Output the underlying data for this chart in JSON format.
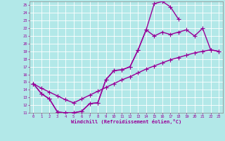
{
  "xlabel": "Windchill (Refroidissement éolien,°C)",
  "xlim": [
    -0.5,
    23.5
  ],
  "ylim": [
    11,
    25.5
  ],
  "xticks": [
    0,
    1,
    2,
    3,
    4,
    5,
    6,
    7,
    8,
    9,
    10,
    11,
    12,
    13,
    14,
    15,
    16,
    17,
    18,
    19,
    20,
    21,
    22,
    23
  ],
  "yticks": [
    11,
    12,
    13,
    14,
    15,
    16,
    17,
    18,
    19,
    20,
    21,
    22,
    23,
    24,
    25
  ],
  "bg_color": "#b2e8e8",
  "grid_color": "#ffffff",
  "line_color": "#990099",
  "curve1_x": [
    0,
    1,
    2,
    3,
    4,
    5,
    6,
    7,
    8,
    9,
    10,
    11,
    12,
    13,
    14,
    15,
    16,
    17,
    18
  ],
  "curve1_y": [
    14.8,
    13.5,
    12.8,
    11.1,
    11.0,
    11.0,
    11.2,
    12.2,
    12.3,
    15.3,
    16.5,
    16.6,
    17.0,
    19.2,
    21.8,
    25.2,
    25.5,
    24.8,
    23.2
  ],
  "curve2_x": [
    0,
    1,
    2,
    3,
    4,
    5,
    6,
    7,
    8,
    9,
    10,
    11,
    12,
    13,
    14,
    15,
    16,
    17,
    18,
    19,
    20,
    21,
    22,
    23
  ],
  "curve2_y": [
    14.8,
    13.5,
    12.8,
    11.1,
    11.0,
    11.0,
    11.2,
    12.2,
    12.3,
    15.3,
    16.5,
    16.6,
    17.0,
    19.2,
    21.8,
    21.0,
    21.5,
    21.2,
    21.5,
    21.8,
    21.0,
    22.0,
    19.2,
    19.0
  ],
  "curve3_x": [
    0,
    1,
    2,
    3,
    4,
    5,
    6,
    7,
    8,
    9,
    10,
    11,
    12,
    13,
    14,
    15,
    16,
    17,
    18,
    19,
    20,
    21,
    22,
    23
  ],
  "curve3_y": [
    14.8,
    14.2,
    13.7,
    13.2,
    12.7,
    12.3,
    12.8,
    13.3,
    13.8,
    14.3,
    14.8,
    15.3,
    15.7,
    16.2,
    16.7,
    17.1,
    17.5,
    17.9,
    18.2,
    18.5,
    18.8,
    19.0,
    19.2,
    19.0
  ],
  "marker": "+",
  "markersize": 4,
  "linewidth": 1.0
}
